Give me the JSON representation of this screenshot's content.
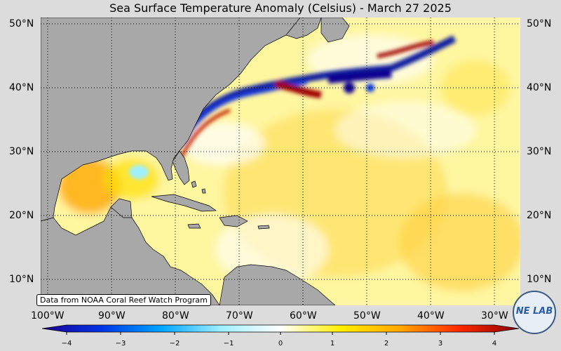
{
  "title": "Sea Surface Temperature Anomaly (Celsius) - March 27 2025",
  "latitude_labels": [
    "50°N",
    "40°N",
    "30°N",
    "20°N",
    "10°N"
  ],
  "longitude_labels": [
    "100°W",
    "90°W",
    "80°W",
    "70°W",
    "60°W",
    "50°W",
    "40°W",
    "30°W"
  ],
  "credit": "Data from NOAA Coral Reef Watch Program",
  "colorbar": {
    "ticks": [
      "−4",
      "−3",
      "−2",
      "−1",
      "0",
      "1",
      "2",
      "3",
      "4"
    ],
    "colors": [
      "#1c0096",
      "#0034e6",
      "#00a6ff",
      "#9ef0ff",
      "#ffffff",
      "#fff000",
      "#ffa800",
      "#ff2800",
      "#8c0000"
    ]
  },
  "logo": {
    "text": "NE LAB"
  },
  "colors": {
    "land": "#a8a8a8",
    "ocean_base": "#fff7b0",
    "background": "#dcdcdc"
  }
}
